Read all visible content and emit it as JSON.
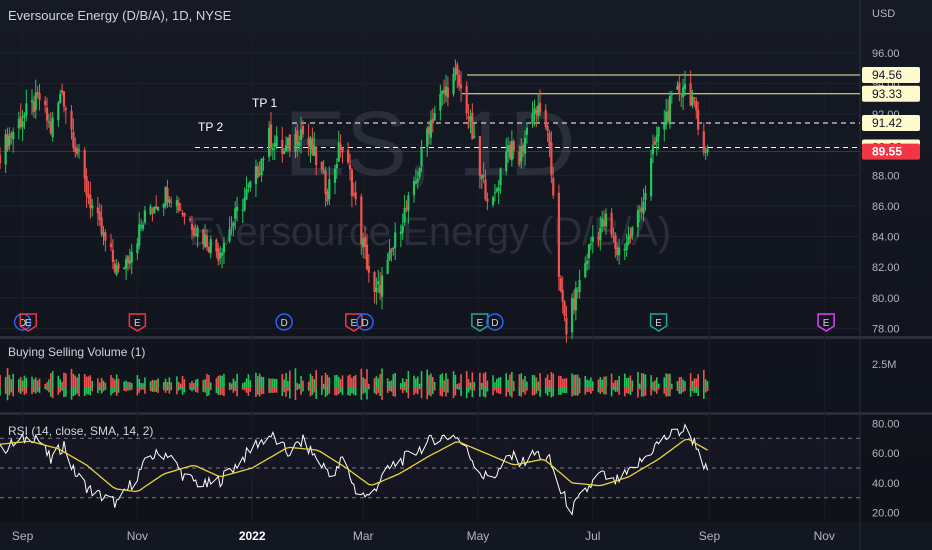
{
  "header": {
    "symbol_title": "Eversource Energy (D/B/A), 1D, NYSE",
    "currency": "USD",
    "watermark_big": "ES, 1D",
    "watermark_small": "Eversource Energy (D/B/A)"
  },
  "colors": {
    "up": "#26a69a",
    "up_bright": "#22c55e",
    "down": "#ef5350",
    "level_line": "#f5f0a0",
    "last_price_bg": "#f23645",
    "rsi_line": "#ffffff",
    "rsi_sma": "#e6d43a"
  },
  "price_axis": {
    "ticks": [
      "96.00",
      "94.00",
      "92.00",
      "90.00",
      "88.00",
      "86.00",
      "84.00",
      "82.00",
      "80.00",
      "78.00"
    ]
  },
  "levels": [
    {
      "value": 94.56,
      "label": "94.56",
      "style": "solid"
    },
    {
      "value": 93.33,
      "label": "93.33",
      "style": "solid"
    },
    {
      "value": 91.42,
      "label": "91.42",
      "style": "dashed"
    },
    {
      "value": 89.82,
      "label": "89.82",
      "style": "dashed"
    }
  ],
  "last_price": "89.55",
  "annotations": {
    "tp1": "TP 1",
    "tp2": "TP 2"
  },
  "events": [
    {
      "date": "2021-09-01",
      "type": "D"
    },
    {
      "date": "2021-09-04",
      "type": "E"
    },
    {
      "date": "2021-11-01",
      "type": "E"
    },
    {
      "date": "2022-01-18",
      "type": "D"
    },
    {
      "date": "2022-02-24",
      "type": "E"
    },
    {
      "date": "2022-03-02",
      "type": "D"
    },
    {
      "date": "2022-05-02",
      "type": "E"
    },
    {
      "date": "2022-05-10",
      "type": "D"
    },
    {
      "date": "2022-08-05",
      "type": "E"
    },
    {
      "date": "2022-11-02",
      "type": "E"
    }
  ],
  "volume_panel": {
    "title": "Buying Selling Volume (1)",
    "tick": "2.5M"
  },
  "rsi_panel": {
    "title": "RSI (14, close, SMA, 14, 2)",
    "ticks": [
      "80.00",
      "60.00",
      "40.00",
      "20.00"
    ]
  },
  "time_axis": {
    "labels": [
      "Sep",
      "Nov",
      "2022",
      "Mar",
      "May",
      "Jul",
      "Sep",
      "Nov"
    ]
  },
  "chart_data": [
    {
      "type": "candlestick",
      "title": "Eversource Energy (D/B/A), 1D, NYSE",
      "ylabel": "USD",
      "ylim": [
        77.5,
        97.5
      ],
      "x_range": [
        "2021-08-20",
        "2022-11-20"
      ],
      "price_path": [
        [
          "2021-08-20",
          89.5
        ],
        [
          "2021-08-30",
          91.5
        ],
        [
          "2021-09-10",
          93.0
        ],
        [
          "2021-09-16",
          91.0
        ],
        [
          "2021-09-22",
          93.5
        ],
        [
          "2021-09-27",
          91.0
        ],
        [
          "2021-10-05",
          87.0
        ],
        [
          "2021-10-12",
          84.5
        ],
        [
          "2021-10-22",
          81.5
        ],
        [
          "2021-10-28",
          83.0
        ],
        [
          "2021-11-08",
          86.0
        ],
        [
          "2021-11-18",
          87.0
        ],
        [
          "2021-11-26",
          85.5
        ],
        [
          "2021-12-06",
          84.0
        ],
        [
          "2021-12-14",
          83.0
        ],
        [
          "2021-12-22",
          85.0
        ],
        [
          "2022-01-03",
          88.0
        ],
        [
          "2022-01-10",
          90.5
        ],
        [
          "2022-01-18",
          89.5
        ],
        [
          "2022-01-27",
          91.0
        ],
        [
          "2022-02-04",
          89.0
        ],
        [
          "2022-02-10",
          87.0
        ],
        [
          "2022-02-17",
          90.0
        ],
        [
          "2022-02-22",
          88.0
        ],
        [
          "2022-02-28",
          84.0
        ],
        [
          "2022-03-07",
          80.0
        ],
        [
          "2022-03-14",
          82.0
        ],
        [
          "2022-03-21",
          85.0
        ],
        [
          "2022-03-28",
          87.0
        ],
        [
          "2022-04-04",
          91.0
        ],
        [
          "2022-04-11",
          93.0
        ],
        [
          "2022-04-19",
          94.5
        ],
        [
          "2022-04-25",
          92.5
        ],
        [
          "2022-05-02",
          88.0
        ],
        [
          "2022-05-09",
          86.0
        ],
        [
          "2022-05-16",
          90.0
        ],
        [
          "2022-05-23",
          89.0
        ],
        [
          "2022-05-30",
          92.5
        ],
        [
          "2022-06-06",
          91.5
        ],
        [
          "2022-06-10",
          87.0
        ],
        [
          "2022-06-14",
          80.0
        ],
        [
          "2022-06-17",
          78.0
        ],
        [
          "2022-06-24",
          81.0
        ],
        [
          "2022-07-01",
          84.0
        ],
        [
          "2022-07-08",
          85.0
        ],
        [
          "2022-07-14",
          83.0
        ],
        [
          "2022-07-21",
          84.0
        ],
        [
          "2022-07-28",
          86.5
        ],
        [
          "2022-08-04",
          90.5
        ],
        [
          "2022-08-11",
          92.5
        ],
        [
          "2022-08-18",
          94.0
        ],
        [
          "2022-08-23",
          93.0
        ],
        [
          "2022-08-26",
          91.0
        ],
        [
          "2022-08-31",
          89.6
        ]
      ],
      "levels": [
        94.56,
        93.33,
        91.42,
        89.82
      ],
      "last_price": 89.55
    },
    {
      "type": "bar",
      "title": "Buying Selling Volume (1)",
      "series": [
        {
          "name": "Buying"
        },
        {
          "name": "Selling"
        }
      ],
      "y_ticks": [
        "2.5M"
      ]
    },
    {
      "type": "line",
      "title": "RSI (14, close, SMA, 14, 2)",
      "ylim": [
        15,
        85
      ],
      "y_ticks": [
        80,
        60,
        40,
        20
      ],
      "rsi": [
        [
          "2021-08-20",
          62
        ],
        [
          "2021-08-30",
          68
        ],
        [
          "2021-09-08",
          72
        ],
        [
          "2021-09-16",
          55
        ],
        [
          "2021-09-23",
          66
        ],
        [
          "2021-09-28",
          48
        ],
        [
          "2021-10-06",
          36
        ],
        [
          "2021-10-14",
          30
        ],
        [
          "2021-10-22",
          26
        ],
        [
          "2021-10-28",
          38
        ],
        [
          "2021-11-08",
          58
        ],
        [
          "2021-11-17",
          60
        ],
        [
          "2021-11-26",
          44
        ],
        [
          "2021-12-07",
          38
        ],
        [
          "2021-12-15",
          42
        ],
        [
          "2021-12-22",
          50
        ],
        [
          "2022-01-03",
          66
        ],
        [
          "2022-01-11",
          72
        ],
        [
          "2022-01-20",
          60
        ],
        [
          "2022-01-28",
          68
        ],
        [
          "2022-02-07",
          52
        ],
        [
          "2022-02-14",
          45
        ],
        [
          "2022-02-18",
          57
        ],
        [
          "2022-02-25",
          35
        ],
        [
          "2022-03-04",
          30
        ],
        [
          "2022-03-10",
          42
        ],
        [
          "2022-03-17",
          52
        ],
        [
          "2022-03-25",
          58
        ],
        [
          "2022-04-01",
          64
        ],
        [
          "2022-04-08",
          70
        ],
        [
          "2022-04-19",
          72
        ],
        [
          "2022-04-26",
          60
        ],
        [
          "2022-05-04",
          44
        ],
        [
          "2022-05-11",
          46
        ],
        [
          "2022-05-18",
          58
        ],
        [
          "2022-05-25",
          54
        ],
        [
          "2022-06-01",
          60
        ],
        [
          "2022-06-08",
          55
        ],
        [
          "2022-06-14",
          34
        ],
        [
          "2022-06-20",
          22
        ],
        [
          "2022-06-27",
          34
        ],
        [
          "2022-07-05",
          46
        ],
        [
          "2022-07-12",
          40
        ],
        [
          "2022-07-20",
          46
        ],
        [
          "2022-07-28",
          56
        ],
        [
          "2022-08-04",
          66
        ],
        [
          "2022-08-11",
          72
        ],
        [
          "2022-08-19",
          76
        ],
        [
          "2022-08-25",
          66
        ],
        [
          "2022-08-31",
          46
        ]
      ],
      "sma": [
        [
          "2021-08-20",
          66
        ],
        [
          "2021-09-05",
          68
        ],
        [
          "2021-09-20",
          63
        ],
        [
          "2021-10-05",
          52
        ],
        [
          "2021-10-20",
          36
        ],
        [
          "2021-11-01",
          34
        ],
        [
          "2021-11-15",
          46
        ],
        [
          "2021-12-01",
          52
        ],
        [
          "2021-12-15",
          44
        ],
        [
          "2022-01-01",
          50
        ],
        [
          "2022-01-20",
          64
        ],
        [
          "2022-02-05",
          62
        ],
        [
          "2022-02-20",
          50
        ],
        [
          "2022-03-05",
          38
        ],
        [
          "2022-03-20",
          46
        ],
        [
          "2022-04-05",
          58
        ],
        [
          "2022-04-20",
          68
        ],
        [
          "2022-05-05",
          60
        ],
        [
          "2022-05-20",
          52
        ],
        [
          "2022-06-05",
          56
        ],
        [
          "2022-06-20",
          40
        ],
        [
          "2022-07-05",
          38
        ],
        [
          "2022-07-20",
          44
        ],
        [
          "2022-08-05",
          56
        ],
        [
          "2022-08-20",
          70
        ],
        [
          "2022-08-31",
          62
        ]
      ]
    }
  ]
}
